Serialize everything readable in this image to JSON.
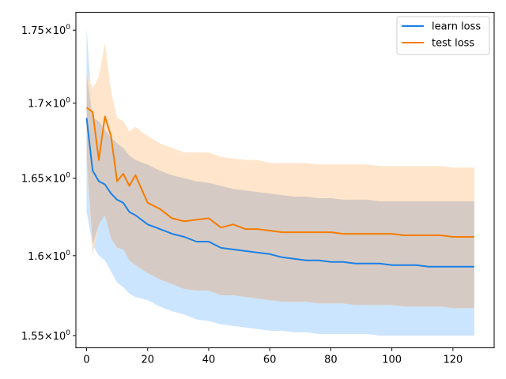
{
  "chart_data": {
    "type": "line",
    "title": "",
    "xlabel": "",
    "ylabel": "",
    "yscale": "log",
    "xlim": [
      -3.5,
      133.5
    ],
    "ylim": [
      1.5425,
      1.7625
    ],
    "x_ticks": [
      0,
      20,
      40,
      60,
      80,
      100,
      120
    ],
    "x_tick_labels": [
      "0",
      "20",
      "40",
      "60",
      "80",
      "100",
      "120"
    ],
    "y_ticks": [
      1.55,
      1.6,
      1.65,
      1.7,
      1.75
    ],
    "y_tick_labels": [
      {
        "base": "1.55",
        "mult": "×",
        "exp_base": "10",
        "exp": "0"
      },
      {
        "base": "1.6",
        "mult": "×",
        "exp_base": "10",
        "exp": "0"
      },
      {
        "base": "1.65",
        "mult": "×",
        "exp_base": "10",
        "exp": "0"
      },
      {
        "base": "1.7",
        "mult": "×",
        "exp_base": "10",
        "exp": "0"
      },
      {
        "base": "1.75",
        "mult": "×",
        "exp_base": "10",
        "exp": "0"
      }
    ],
    "grid": false,
    "legend_position": "top-right",
    "x": [
      0,
      2,
      4,
      6,
      8,
      10,
      12,
      14,
      16,
      20,
      24,
      28,
      32,
      36,
      40,
      44,
      48,
      52,
      56,
      60,
      64,
      68,
      72,
      76,
      80,
      84,
      88,
      92,
      96,
      100,
      104,
      108,
      112,
      116,
      120,
      124,
      127
    ],
    "series": [
      {
        "name": "learn loss",
        "color": "#1f77b4",
        "line_color": "#1a80e5",
        "fill_color": "#cce5ff",
        "values": [
          1.69,
          1.655,
          1.648,
          1.646,
          1.64,
          1.636,
          1.634,
          1.628,
          1.626,
          1.62,
          1.617,
          1.614,
          1.612,
          1.609,
          1.609,
          1.605,
          1.604,
          1.603,
          1.602,
          1.601,
          1.599,
          1.598,
          1.597,
          1.597,
          1.596,
          1.596,
          1.595,
          1.595,
          1.595,
          1.594,
          1.594,
          1.594,
          1.593,
          1.593,
          1.593,
          1.593,
          1.593
        ],
        "upper": [
          1.752,
          1.69,
          1.688,
          1.682,
          1.677,
          1.673,
          1.67,
          1.665,
          1.662,
          1.659,
          1.655,
          1.652,
          1.65,
          1.648,
          1.647,
          1.645,
          1.643,
          1.642,
          1.641,
          1.64,
          1.639,
          1.638,
          1.638,
          1.637,
          1.637,
          1.636,
          1.636,
          1.636,
          1.635,
          1.635,
          1.635,
          1.635,
          1.635,
          1.635,
          1.635,
          1.635,
          1.635
        ],
        "lower": [
          1.628,
          1.607,
          1.6,
          1.597,
          1.59,
          1.583,
          1.58,
          1.576,
          1.574,
          1.572,
          1.568,
          1.565,
          1.563,
          1.56,
          1.559,
          1.557,
          1.556,
          1.555,
          1.554,
          1.553,
          1.553,
          1.552,
          1.552,
          1.551,
          1.551,
          1.551,
          1.551,
          1.551,
          1.55,
          1.55,
          1.55,
          1.55,
          1.55,
          1.55,
          1.55,
          1.55,
          1.55
        ]
      },
      {
        "name": "test loss",
        "color": "#ff7f0e",
        "line_color": "#f57c00",
        "fill_color": "#ffe0c2",
        "values": [
          1.697,
          1.694,
          1.662,
          1.691,
          1.678,
          1.648,
          1.653,
          1.645,
          1.652,
          1.634,
          1.63,
          1.624,
          1.622,
          1.623,
          1.624,
          1.618,
          1.62,
          1.617,
          1.617,
          1.616,
          1.615,
          1.615,
          1.615,
          1.615,
          1.615,
          1.614,
          1.614,
          1.614,
          1.614,
          1.614,
          1.613,
          1.613,
          1.613,
          1.613,
          1.612,
          1.612,
          1.612
        ],
        "upper": [
          1.72,
          1.71,
          1.718,
          1.741,
          1.708,
          1.69,
          1.688,
          1.681,
          1.684,
          1.678,
          1.673,
          1.67,
          1.667,
          1.667,
          1.667,
          1.664,
          1.663,
          1.662,
          1.662,
          1.66,
          1.66,
          1.66,
          1.66,
          1.659,
          1.659,
          1.659,
          1.659,
          1.659,
          1.658,
          1.658,
          1.658,
          1.658,
          1.658,
          1.658,
          1.657,
          1.657,
          1.657
        ],
        "lower": [
          1.663,
          1.6,
          1.62,
          1.626,
          1.611,
          1.605,
          1.604,
          1.597,
          1.594,
          1.589,
          1.585,
          1.582,
          1.579,
          1.578,
          1.578,
          1.575,
          1.575,
          1.574,
          1.573,
          1.572,
          1.571,
          1.571,
          1.571,
          1.57,
          1.57,
          1.57,
          1.569,
          1.569,
          1.569,
          1.569,
          1.568,
          1.568,
          1.568,
          1.568,
          1.567,
          1.567,
          1.567
        ]
      }
    ]
  }
}
